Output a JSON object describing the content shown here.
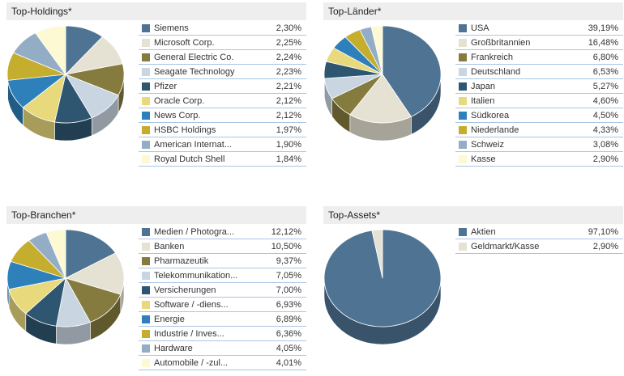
{
  "palette": [
    "#4f7393",
    "#e6e2d3",
    "#857b3f",
    "#c9d5e1",
    "#2f5670",
    "#e8d97c",
    "#2e80ba",
    "#c5ad2e",
    "#93adc6",
    "#fdf9d2"
  ],
  "chart_data": [
    {
      "type": "pie",
      "title": "Top-Holdings*",
      "categories": [
        "Siemens",
        "Microsoft Corp.",
        "General Electric Co.",
        "Seagate Technology",
        "Pfizer",
        "Oracle Corp.",
        "News Corp.",
        "HSBC Holdings",
        "American Internat...",
        "Royal Dutch Shell"
      ],
      "values": [
        2.3,
        2.25,
        2.24,
        2.23,
        2.21,
        2.12,
        2.12,
        1.97,
        1.9,
        1.84
      ],
      "labels": [
        "2,30%",
        "2,25%",
        "2,24%",
        "2,23%",
        "2,21%",
        "2,12%",
        "2,12%",
        "1,97%",
        "1,90%",
        "1,84%"
      ]
    },
    {
      "type": "pie",
      "title": "Top-Länder*",
      "categories": [
        "USA",
        "Großbritannien",
        "Frankreich",
        "Deutschland",
        "Japan",
        "Italien",
        "Südkorea",
        "Niederlande",
        "Schweiz",
        "Kasse"
      ],
      "values": [
        39.19,
        16.48,
        6.8,
        6.53,
        5.27,
        4.6,
        4.5,
        4.33,
        3.08,
        2.9
      ],
      "labels": [
        "39,19%",
        "16,48%",
        "6,80%",
        "6,53%",
        "5,27%",
        "4,60%",
        "4,50%",
        "4,33%",
        "3,08%",
        "2,90%"
      ]
    },
    {
      "type": "pie",
      "title": "Top-Branchen*",
      "categories": [
        "Medien / Photogra...",
        "Banken",
        "Pharmazeutik",
        "Telekommunikation...",
        "Versicherungen",
        "Software / -diens...",
        "Energie",
        "Industrie / Inves...",
        "Hardware",
        "Automobile / -zul..."
      ],
      "values": [
        12.12,
        10.5,
        9.37,
        7.05,
        7.0,
        6.93,
        6.89,
        6.36,
        4.05,
        4.01
      ],
      "labels": [
        "12,12%",
        "10,50%",
        "9,37%",
        "7,05%",
        "7,00%",
        "6,93%",
        "6,89%",
        "6,36%",
        "4,05%",
        "4,01%"
      ]
    },
    {
      "type": "pie",
      "title": "Top-Assets*",
      "categories": [
        "Aktien",
        "Geldmarkt/Kasse"
      ],
      "values": [
        97.1,
        2.9
      ],
      "labels": [
        "97,10%",
        "2,90%"
      ]
    }
  ]
}
